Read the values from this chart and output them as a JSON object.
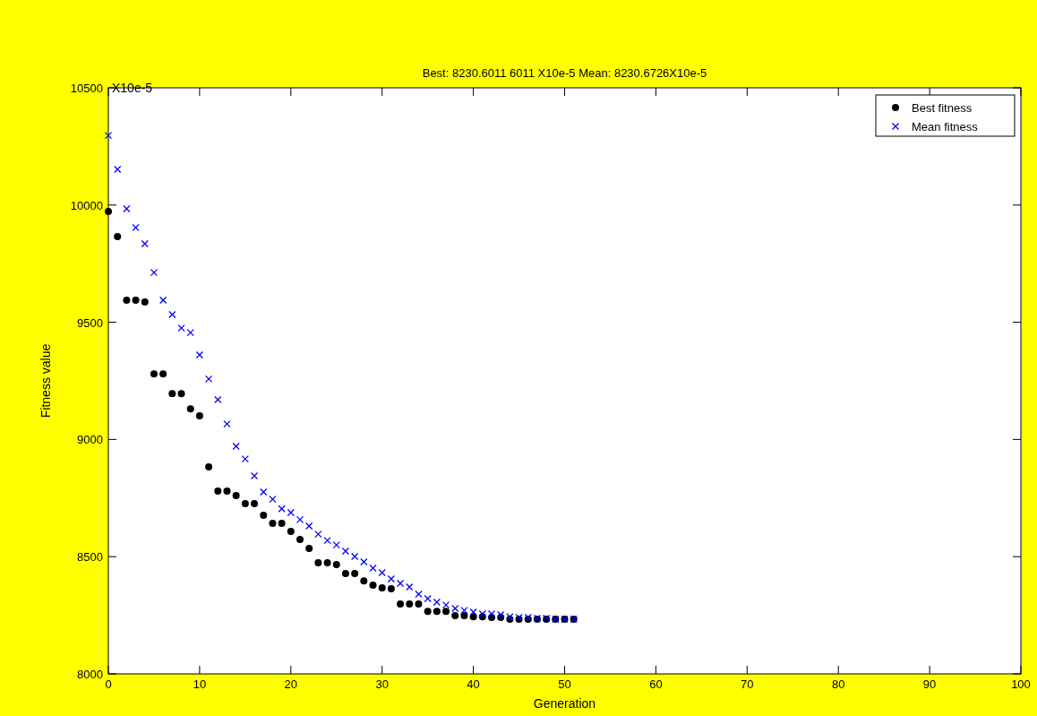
{
  "chart_data": {
    "type": "scatter",
    "title": "Best: 8230.6011 6011 X10e-5  Mean: 8230.6726X10e-5",
    "xlabel": "Generation",
    "ylabel": "Fitness value",
    "annotations": [
      "X10e-5"
    ],
    "x": [
      0,
      1,
      2,
      3,
      4,
      5,
      6,
      7,
      8,
      9,
      10,
      11,
      12,
      13,
      14,
      15,
      16,
      17,
      18,
      19,
      20,
      21,
      22,
      23,
      24,
      25,
      26,
      27,
      28,
      29,
      30,
      31,
      32,
      33,
      34,
      35,
      36,
      37,
      38,
      39,
      40,
      41,
      42,
      43,
      44,
      45,
      46,
      47,
      48,
      49,
      50,
      51
    ],
    "series": [
      {
        "name": "Best fitness",
        "color": "#000000",
        "marker": "circle",
        "values": [
          9972,
          9865,
          9594,
          9594,
          9586,
          9280,
          9280,
          9196,
          9196,
          9131,
          9101,
          8883,
          8780,
          8780,
          8761,
          8726,
          8726,
          8677,
          8642,
          8642,
          8608,
          8573,
          8535,
          8474,
          8474,
          8466,
          8428,
          8428,
          8397,
          8378,
          8367,
          8363,
          8298,
          8298,
          8298,
          8267,
          8267,
          8267,
          8248,
          8248,
          8244,
          8244,
          8241,
          8241,
          8233,
          8233,
          8233,
          8233,
          8233,
          8233,
          8233,
          8233
        ]
      },
      {
        "name": "Mean fitness",
        "color": "#0000ff",
        "marker": "cross",
        "values": [
          10297,
          10152,
          9984,
          9904,
          9835,
          9712,
          9594,
          9533,
          9475,
          9456,
          9361,
          9258,
          9170,
          9066,
          8971,
          8917,
          8845,
          8776,
          8745,
          8704,
          8688,
          8658,
          8631,
          8596,
          8569,
          8550,
          8524,
          8501,
          8478,
          8451,
          8432,
          8405,
          8386,
          8371,
          8340,
          8321,
          8306,
          8294,
          8279,
          8271,
          8264,
          8256,
          8256,
          8252,
          8244,
          8241,
          8241,
          8237,
          8237,
          8233,
          8233,
          8233
        ]
      }
    ],
    "xlim": [
      0,
      100
    ],
    "xticks": [
      0,
      10,
      20,
      30,
      40,
      50,
      60,
      70,
      80,
      90,
      100
    ],
    "ylim": [
      8000,
      10500
    ],
    "yticks": [
      8000,
      8500,
      9000,
      9500,
      10000,
      10500
    ],
    "grid": false,
    "legend": "top right"
  }
}
